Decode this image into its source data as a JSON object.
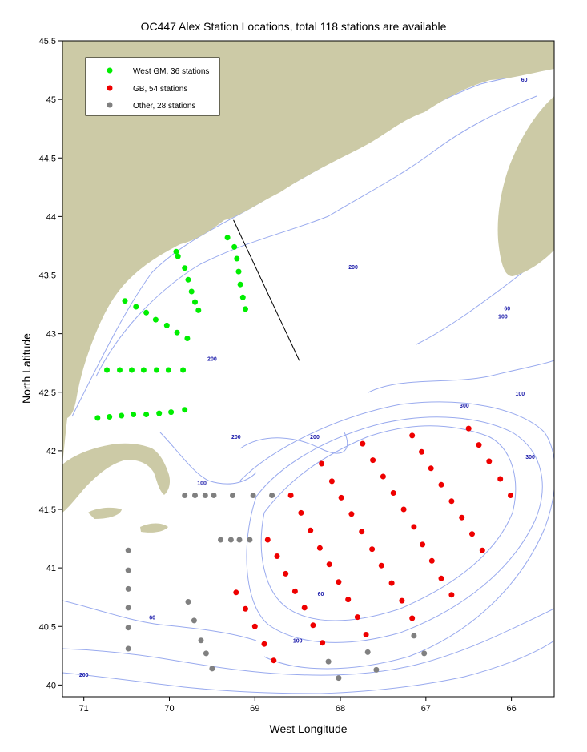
{
  "title": "OC447 Alex Station Locations, total 118 stations are available",
  "xlabel": "West Longitude",
  "ylabel": "North Latitude",
  "colors": {
    "land": "#cccaa6",
    "contour": "#99aaee",
    "contour_label": "#1a1aaa",
    "west_gm": "#00ee00",
    "gb": "#ee0000",
    "other": "#808080"
  },
  "legend": {
    "placement": "top-left",
    "items": [
      {
        "key": "west_gm",
        "label": "West GM, 36 stations"
      },
      {
        "key": "gb",
        "label": "GB, 54 stations"
      },
      {
        "key": "other",
        "label": "Other, 28 stations"
      }
    ]
  },
  "contour_labels": [
    {
      "text": "60",
      "lon": 65.85,
      "lat": 45.15
    },
    {
      "text": "200",
      "lon": 67.85,
      "lat": 43.55
    },
    {
      "text": "60",
      "lon": 66.05,
      "lat": 43.2
    },
    {
      "text": "100",
      "lon": 66.1,
      "lat": 43.13
    },
    {
      "text": "200",
      "lon": 69.5,
      "lat": 42.77
    },
    {
      "text": "100",
      "lon": 65.9,
      "lat": 42.47
    },
    {
      "text": "300",
      "lon": 66.55,
      "lat": 42.37
    },
    {
      "text": "200",
      "lon": 69.22,
      "lat": 42.1
    },
    {
      "text": "200",
      "lon": 68.3,
      "lat": 42.1
    },
    {
      "text": "300",
      "lon": 65.78,
      "lat": 41.93
    },
    {
      "text": "100",
      "lon": 69.62,
      "lat": 41.71
    },
    {
      "text": "60",
      "lon": 68.23,
      "lat": 40.76
    },
    {
      "text": "60",
      "lon": 70.2,
      "lat": 40.56
    },
    {
      "text": "100",
      "lon": 68.5,
      "lat": 40.36
    },
    {
      "text": "200",
      "lon": 71.0,
      "lat": 40.07
    }
  ],
  "transect": {
    "from": [
      69.25,
      43.97
    ],
    "to": [
      68.48,
      42.77
    ]
  },
  "chart_data": {
    "type": "scatter",
    "title": "OC447 Alex Station Locations, total 118 stations are available",
    "xlabel": "West Longitude",
    "ylabel": "North Latitude",
    "xlim": [
      71.25,
      65.5
    ],
    "ylim": [
      39.9,
      45.5
    ],
    "x_axis_reversed": true,
    "xticks": [
      71,
      70,
      69,
      68,
      67,
      66
    ],
    "yticks": [
      40,
      40.5,
      41,
      41.5,
      42,
      42.5,
      43,
      43.5,
      44,
      44.5,
      45,
      45.5
    ],
    "xtick_labels": [
      "71",
      "70",
      "69",
      "68",
      "67",
      "66"
    ],
    "ytick_labels": [
      "40",
      "40.5",
      "41",
      "41.5",
      "42",
      "42.5",
      "43",
      "43.5",
      "44",
      "44.5",
      "45",
      "45.5"
    ],
    "grid": false,
    "legend_placement": "top-left",
    "series": [
      {
        "name": "West GM, 36 stations",
        "color": "#00ee00",
        "points": [
          [
            69.32,
            43.82
          ],
          [
            69.24,
            43.74
          ],
          [
            69.21,
            43.64
          ],
          [
            69.19,
            43.53
          ],
          [
            69.17,
            43.42
          ],
          [
            69.14,
            43.31
          ],
          [
            69.11,
            43.21
          ],
          [
            69.92,
            43.7
          ],
          [
            69.9,
            43.66
          ],
          [
            69.82,
            43.56
          ],
          [
            69.78,
            43.46
          ],
          [
            69.74,
            43.36
          ],
          [
            69.7,
            43.27
          ],
          [
            69.66,
            43.2
          ],
          [
            70.52,
            43.28
          ],
          [
            70.39,
            43.23
          ],
          [
            70.27,
            43.18
          ],
          [
            70.16,
            43.12
          ],
          [
            70.03,
            43.07
          ],
          [
            69.91,
            43.01
          ],
          [
            69.79,
            42.96
          ],
          [
            70.73,
            42.69
          ],
          [
            70.58,
            42.69
          ],
          [
            70.44,
            42.69
          ],
          [
            70.3,
            42.69
          ],
          [
            70.15,
            42.69
          ],
          [
            70.01,
            42.69
          ],
          [
            69.84,
            42.69
          ],
          [
            70.84,
            42.28
          ],
          [
            70.7,
            42.29
          ],
          [
            70.56,
            42.3
          ],
          [
            70.42,
            42.31
          ],
          [
            70.27,
            42.31
          ],
          [
            70.12,
            42.32
          ],
          [
            69.98,
            42.33
          ],
          [
            69.82,
            42.35
          ]
        ]
      },
      {
        "name": "GB, 54 stations",
        "color": "#ee0000",
        "points": [
          [
            66.5,
            42.19
          ],
          [
            66.38,
            42.05
          ],
          [
            66.26,
            41.91
          ],
          [
            66.13,
            41.76
          ],
          [
            66.01,
            41.62
          ],
          [
            67.16,
            42.13
          ],
          [
            67.05,
            41.99
          ],
          [
            66.94,
            41.85
          ],
          [
            66.82,
            41.71
          ],
          [
            66.7,
            41.57
          ],
          [
            66.58,
            41.43
          ],
          [
            66.46,
            41.29
          ],
          [
            66.34,
            41.15
          ],
          [
            67.74,
            42.06
          ],
          [
            67.62,
            41.92
          ],
          [
            67.5,
            41.78
          ],
          [
            67.38,
            41.64
          ],
          [
            67.26,
            41.5
          ],
          [
            67.14,
            41.35
          ],
          [
            67.04,
            41.2
          ],
          [
            66.93,
            41.06
          ],
          [
            66.82,
            40.91
          ],
          [
            66.7,
            40.77
          ],
          [
            68.22,
            41.89
          ],
          [
            68.1,
            41.74
          ],
          [
            67.99,
            41.6
          ],
          [
            67.87,
            41.46
          ],
          [
            67.75,
            41.31
          ],
          [
            67.63,
            41.16
          ],
          [
            67.52,
            41.02
          ],
          [
            67.4,
            40.87
          ],
          [
            67.28,
            40.72
          ],
          [
            67.16,
            40.57
          ],
          [
            68.58,
            41.62
          ],
          [
            68.46,
            41.47
          ],
          [
            68.35,
            41.32
          ],
          [
            68.24,
            41.17
          ],
          [
            68.13,
            41.03
          ],
          [
            68.02,
            40.88
          ],
          [
            67.91,
            40.73
          ],
          [
            67.8,
            40.58
          ],
          [
            67.7,
            40.43
          ],
          [
            68.85,
            41.24
          ],
          [
            68.74,
            41.1
          ],
          [
            68.64,
            40.95
          ],
          [
            68.53,
            40.8
          ],
          [
            68.42,
            40.66
          ],
          [
            68.32,
            40.51
          ],
          [
            68.21,
            40.36
          ],
          [
            69.22,
            40.79
          ],
          [
            69.11,
            40.65
          ],
          [
            69.0,
            40.5
          ],
          [
            68.89,
            40.35
          ],
          [
            68.78,
            40.21
          ]
        ]
      },
      {
        "name": "Other, 28 stations",
        "color": "#808080",
        "points": [
          [
            69.82,
            41.62
          ],
          [
            69.7,
            41.62
          ],
          [
            69.58,
            41.62
          ],
          [
            69.48,
            41.62
          ],
          [
            69.26,
            41.62
          ],
          [
            69.02,
            41.62
          ],
          [
            68.8,
            41.62
          ],
          [
            69.4,
            41.24
          ],
          [
            69.28,
            41.24
          ],
          [
            69.18,
            41.24
          ],
          [
            69.06,
            41.24
          ],
          [
            70.48,
            41.15
          ],
          [
            70.48,
            40.98
          ],
          [
            70.48,
            40.82
          ],
          [
            70.48,
            40.66
          ],
          [
            70.48,
            40.49
          ],
          [
            70.48,
            40.31
          ],
          [
            69.78,
            40.71
          ],
          [
            69.71,
            40.55
          ],
          [
            69.63,
            40.38
          ],
          [
            69.57,
            40.27
          ],
          [
            69.5,
            40.14
          ],
          [
            68.02,
            40.06
          ],
          [
            68.14,
            40.2
          ],
          [
            67.68,
            40.28
          ],
          [
            67.58,
            40.13
          ],
          [
            67.14,
            40.42
          ],
          [
            67.02,
            40.27
          ]
        ]
      }
    ]
  }
}
